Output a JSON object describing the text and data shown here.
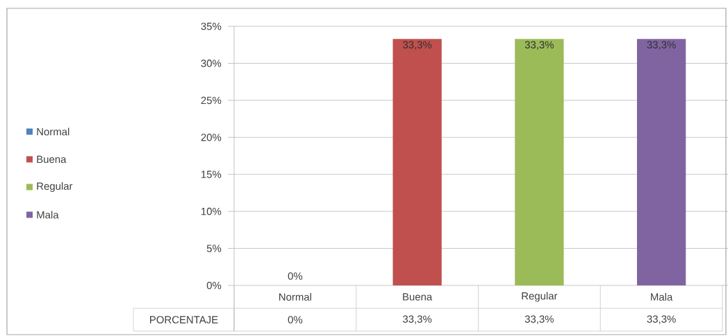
{
  "chart_data": {
    "type": "bar",
    "categories": [
      "Normal",
      "Buena",
      "Regular",
      "Mala"
    ],
    "series": [
      {
        "name": "PORCENTAJE",
        "values": [
          0,
          33.3,
          33.3,
          33.3
        ],
        "colors": [
          "#4f81bd",
          "#c0504d",
          "#9bbb59",
          "#8064a2"
        ],
        "value_labels": [
          "0%",
          "33,3%",
          "33,3%",
          "33,3%"
        ]
      }
    ],
    "ylim": [
      0,
      35
    ],
    "yticks": [
      {
        "value": 0,
        "label": "0%"
      },
      {
        "value": 5,
        "label": "5%"
      },
      {
        "value": 10,
        "label": "10%"
      },
      {
        "value": 15,
        "label": "15%"
      },
      {
        "value": 20,
        "label": "20%"
      },
      {
        "value": 25,
        "label": "25%"
      },
      {
        "value": 30,
        "label": "30%"
      },
      {
        "value": 35,
        "label": "35%"
      }
    ],
    "grid": "y",
    "legend": "left"
  }
}
